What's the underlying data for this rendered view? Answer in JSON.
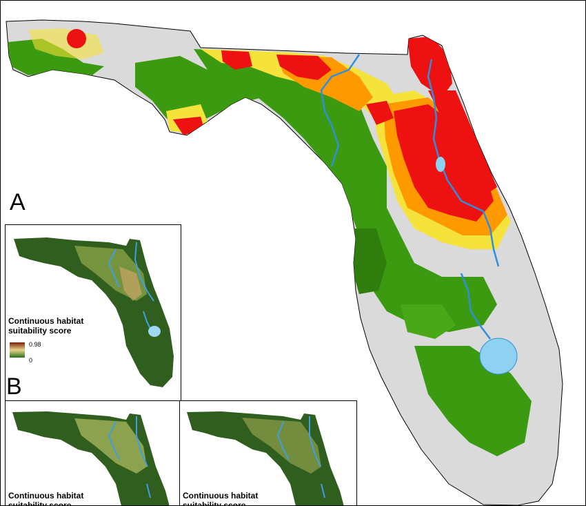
{
  "panels": {
    "main_label": "A",
    "inset_label": "B"
  },
  "legend": {
    "title_line1": "Continuous habitat",
    "title_line2": "suitability score",
    "max": "0.98",
    "min": "0"
  },
  "colors": {
    "high_suitability": "#ee1111",
    "medium_high": "#ff9900",
    "medium": "#f5e23a",
    "low": "#3c9a10",
    "none": "#dadada",
    "water": "#88c8ec",
    "inset_land": "#2f5e1e",
    "gradient_high": "#7a1f0e",
    "gradient_mid": "#e7d48a",
    "gradient_low": "#2a6e1a"
  }
}
